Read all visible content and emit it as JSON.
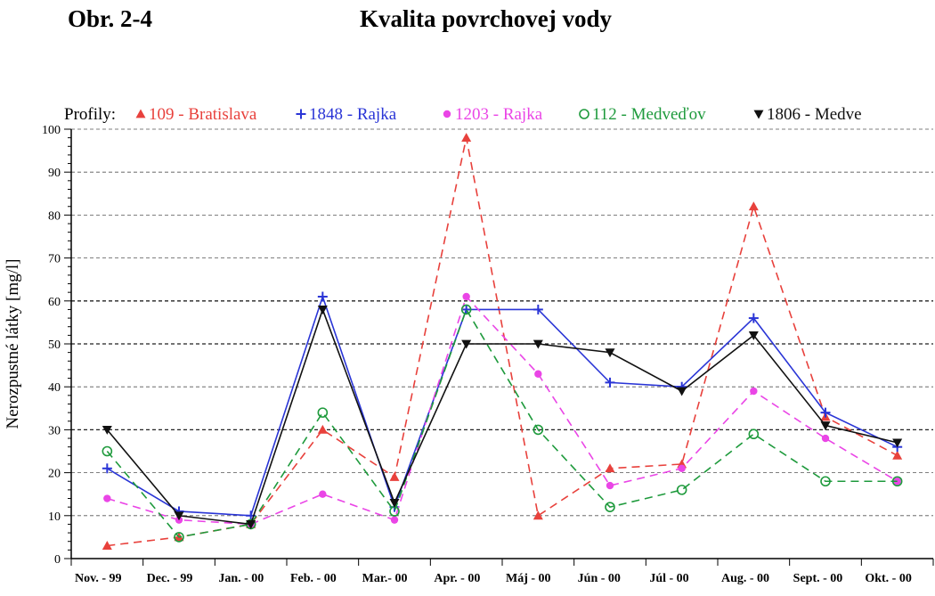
{
  "figure_label": "Obr. 2-4",
  "chart_data": {
    "type": "line",
    "title": "Kvalita povrchovej vody",
    "ylabel": "Nerozpustné látky [mg/l]",
    "xlabel": "",
    "ylim": [
      0,
      100
    ],
    "yticks": [
      0,
      10,
      20,
      30,
      40,
      50,
      60,
      70,
      80,
      90,
      100
    ],
    "grid": true,
    "legend_title": "Profily:",
    "legend_position": "top",
    "categories": [
      "Nov. - 99",
      "Dec. - 99",
      "Jan. - 00",
      "Feb. - 00",
      "Mar.- 00",
      "Apr. - 00",
      "Máj - 00",
      "Jún - 00",
      "Júl - 00",
      "Aug. - 00",
      "Sept. - 00",
      "Okt. - 00"
    ],
    "series": [
      {
        "name": "109 - Bratislava",
        "color": "#e8413c",
        "dash": true,
        "marker": "triangle-up",
        "values": [
          3,
          5,
          8,
          30,
          19,
          98,
          10,
          21,
          22,
          82,
          33,
          24
        ]
      },
      {
        "name": "1848 - Rajka",
        "color": "#2a35d6",
        "dash": false,
        "marker": "plus",
        "values": [
          21,
          11,
          10,
          61,
          12,
          58,
          58,
          41,
          40,
          56,
          34,
          26
        ]
      },
      {
        "name": "1203 - Rajka",
        "color": "#ea45e6",
        "dash": true,
        "marker": "dot",
        "values": [
          14,
          9,
          8,
          15,
          9,
          61,
          43,
          17,
          21,
          39,
          28,
          18
        ]
      },
      {
        "name": "112 - Medveďov",
        "color": "#1e9a3c",
        "dash": true,
        "marker": "circle-open",
        "values": [
          25,
          5,
          8,
          34,
          11,
          58,
          30,
          12,
          16,
          29,
          18,
          18
        ]
      },
      {
        "name": "1806 - Medve",
        "color": "#111111",
        "dash": false,
        "marker": "triangle-down",
        "values": [
          30,
          10,
          8,
          58,
          13,
          50,
          50,
          48,
          39,
          52,
          31,
          27
        ]
      }
    ]
  }
}
